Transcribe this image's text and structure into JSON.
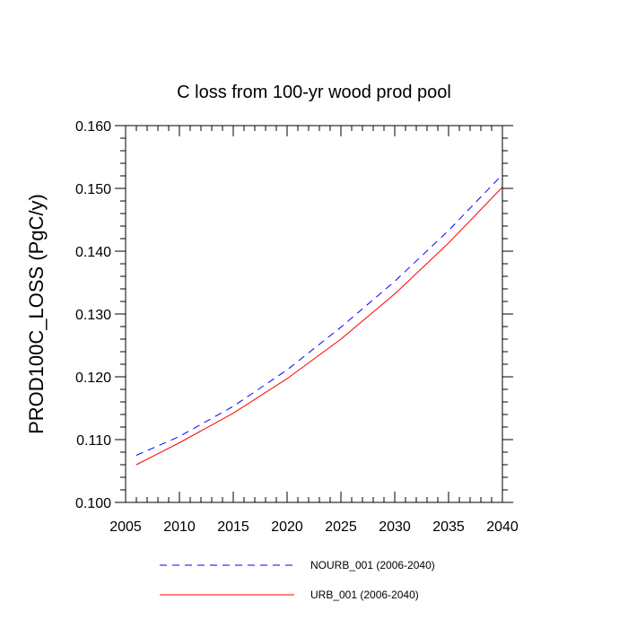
{
  "chart_data": {
    "type": "line",
    "title": "C loss from 100-yr wood prod pool",
    "xlabel": "",
    "ylabel": "PROD100C_LOSS  (PgC/y)",
    "xlim": [
      2005,
      2040
    ],
    "ylim": [
      0.1,
      0.16
    ],
    "xticks": [
      2005,
      2010,
      2015,
      2020,
      2025,
      2030,
      2035,
      2040
    ],
    "xtick_labels": [
      "2005",
      "2010",
      "2015",
      "2020",
      "2025",
      "2030",
      "2035",
      "2040"
    ],
    "yticks": [
      0.1,
      0.11,
      0.12,
      0.13,
      0.14,
      0.15,
      0.16
    ],
    "ytick_labels": [
      "0.100",
      "0.110",
      "0.120",
      "0.130",
      "0.140",
      "0.150",
      "0.160"
    ],
    "legend_position": "bottom",
    "series": [
      {
        "name": "NOURB_001 (2006-2040)",
        "color": "#0000ff",
        "style": "dashed",
        "x": [
          2006,
          2010,
          2015,
          2020,
          2025,
          2030,
          2035,
          2040
        ],
        "values": [
          0.1075,
          0.1105,
          0.1153,
          0.1211,
          0.1279,
          0.1352,
          0.1433,
          0.1522
        ]
      },
      {
        "name": "URB_001 (2006-2040)",
        "color": "#ff0000",
        "style": "solid",
        "x": [
          2006,
          2010,
          2015,
          2020,
          2025,
          2030,
          2035,
          2040
        ],
        "values": [
          0.106,
          0.1095,
          0.1142,
          0.1197,
          0.126,
          0.1332,
          0.1413,
          0.1502
        ]
      }
    ]
  }
}
